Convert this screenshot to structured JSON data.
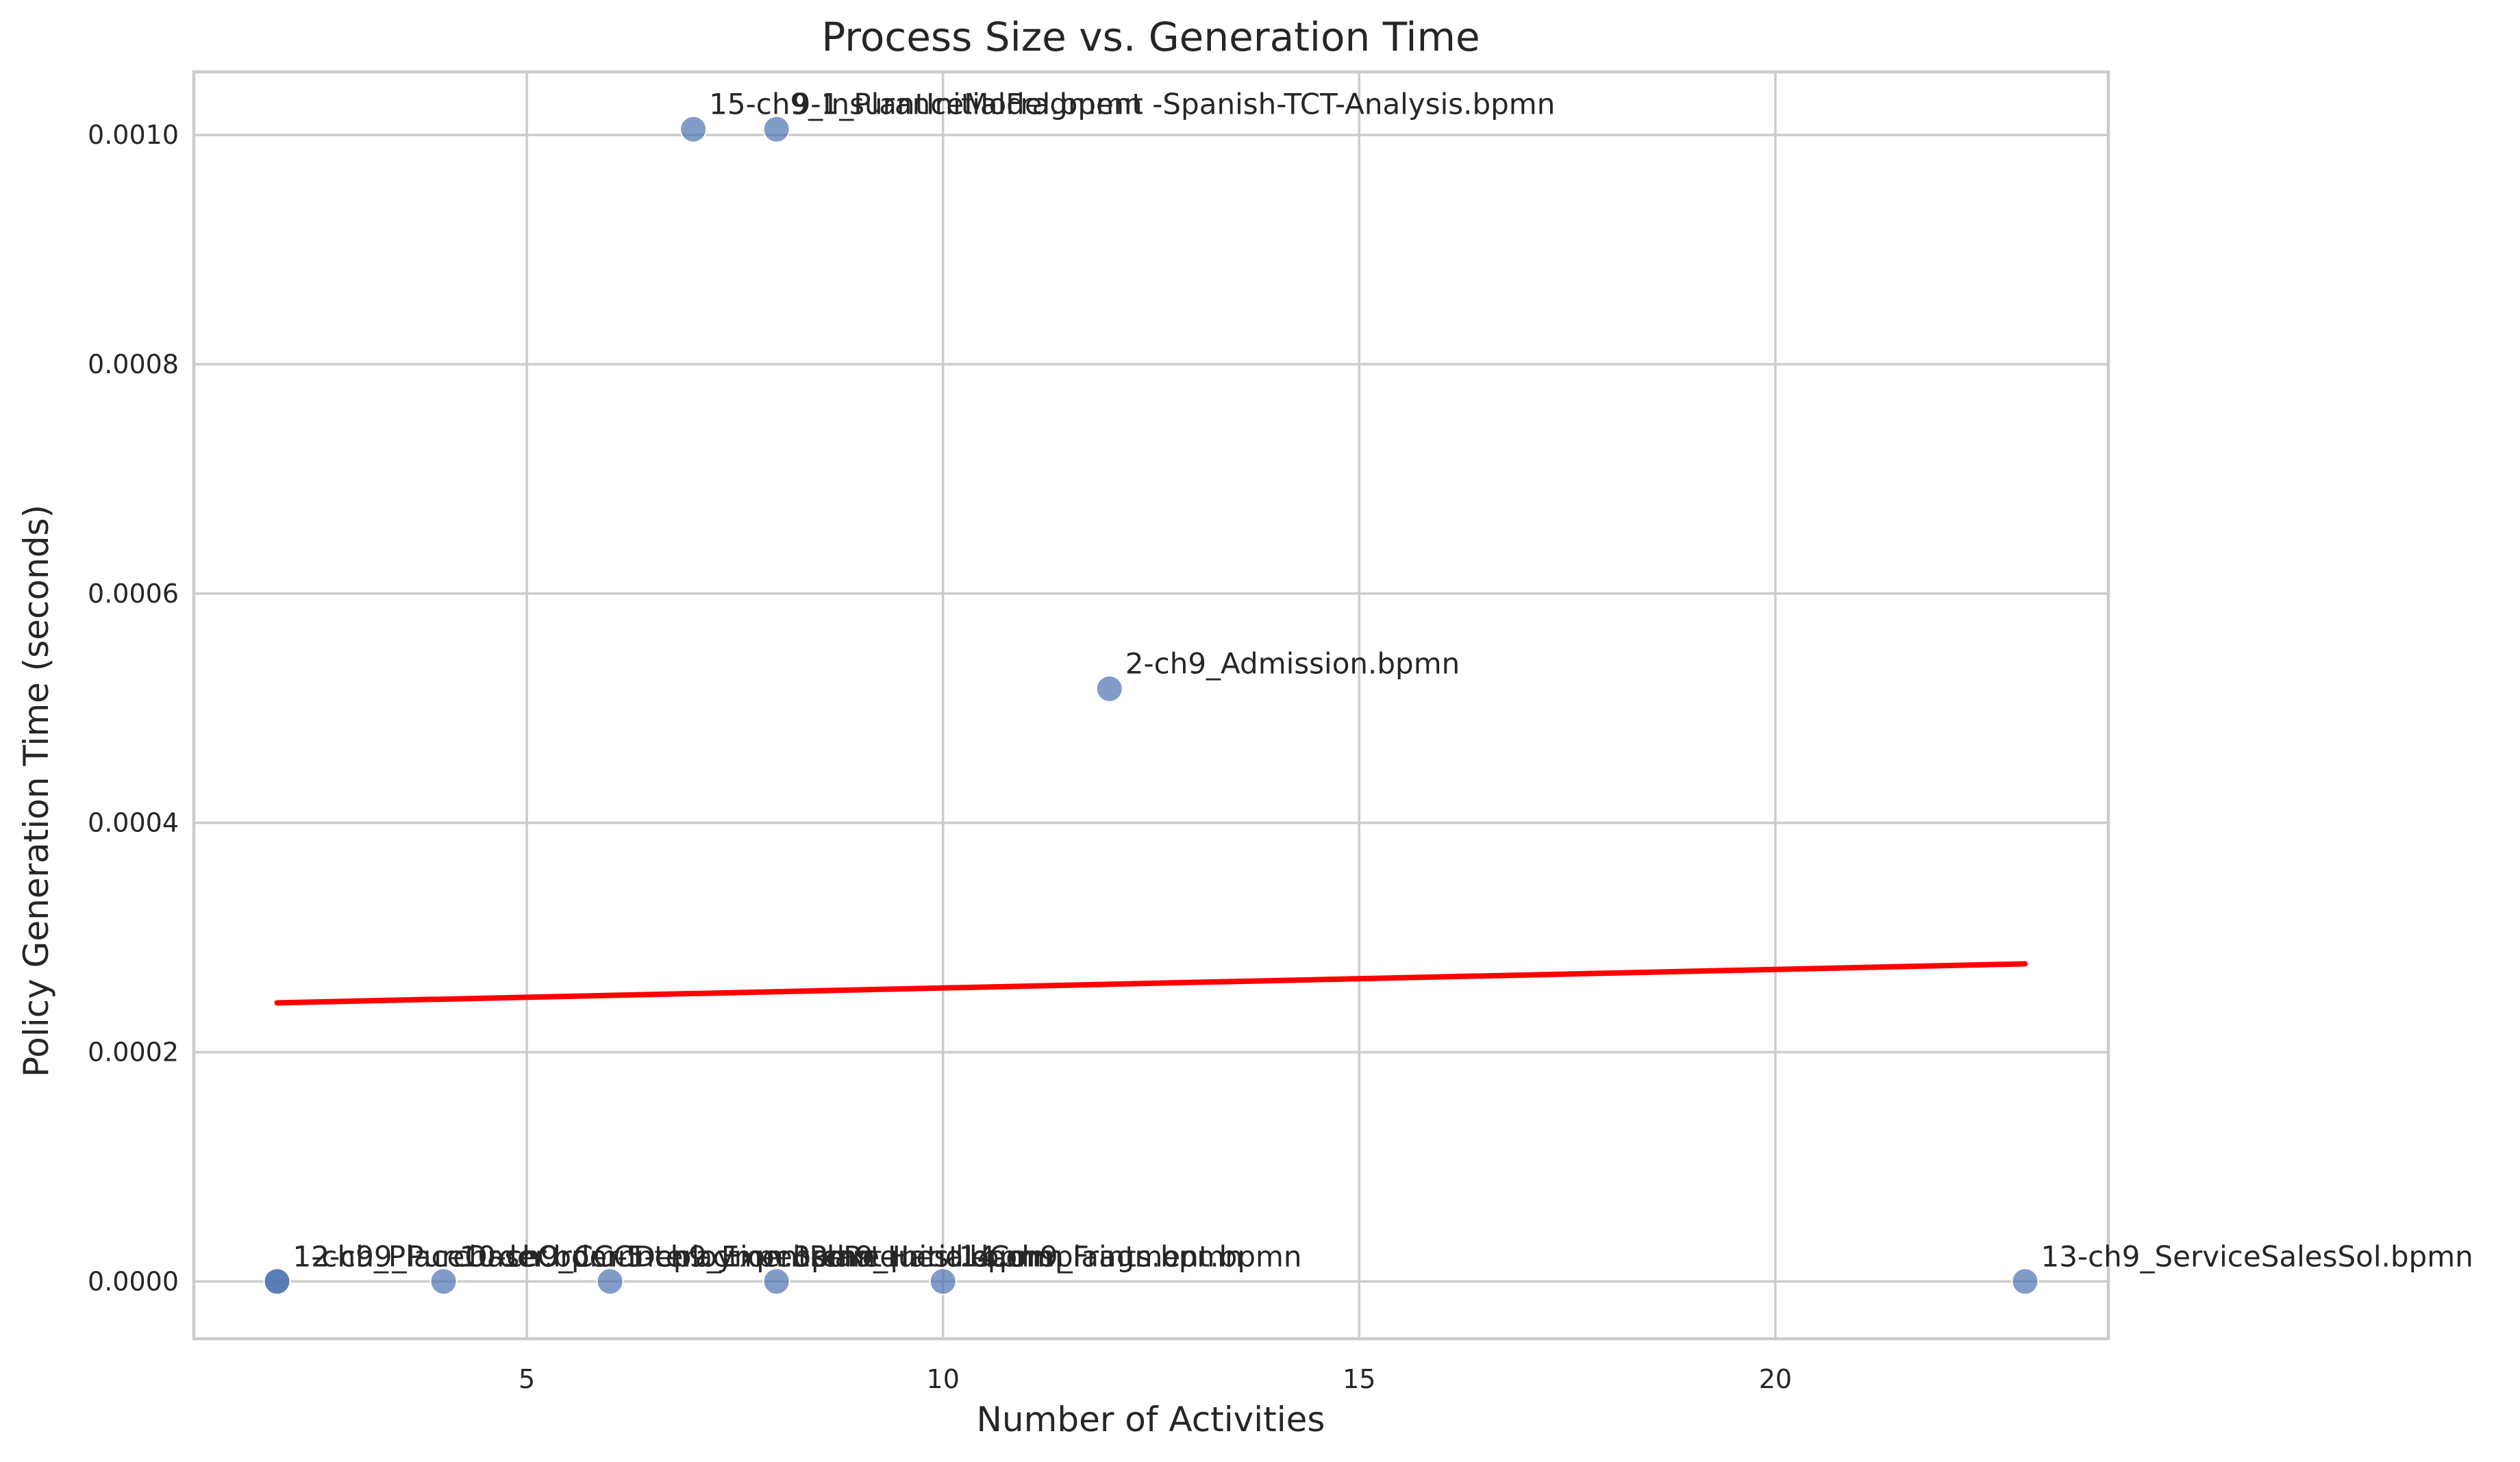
{
  "chart_data": {
    "type": "scatter",
    "title": "Process Size vs. Generation Time",
    "xlabel": "Number of Activities",
    "ylabel": "Policy Generation Time (seconds)",
    "xlim": [
      1,
      24
    ],
    "ylim": [
      -5e-05,
      0.001055
    ],
    "xticks": [
      5,
      10,
      15,
      20
    ],
    "xtick_labels": [
      "5",
      "10",
      "15",
      "20"
    ],
    "yticks": [
      0,
      0.0002,
      0.0004,
      0.0006,
      0.0008,
      0.001
    ],
    "ytick_labels": [
      "0.0000",
      "0.0002",
      "0.0004",
      "0.0006",
      "0.0008",
      "0.0010"
    ],
    "grid": true,
    "legend": "none",
    "point_color": "#4c72b0",
    "trend_color": "#ff0000",
    "points": [
      {
        "x": 2,
        "y": 0.0,
        "label": "1-ch9_PlaceOrder.bpmn"
      },
      {
        "x": 2,
        "y": 0.0,
        "label": "12-ch9_PurchaseOrder-Interaction.bpmn"
      },
      {
        "x": 4,
        "y": 0.0,
        "label": "10-ch9_CCCDeploymentPlant-Initial.bpmn"
      },
      {
        "x": 6,
        "y": 0.0,
        "label": "5-ch9_ExpenseRequest.bpmn"
      },
      {
        "x": 8,
        "y": 0.0,
        "label": "3-ch9_HandleComplaints.bpmn"
      },
      {
        "x": 10,
        "y": 0.0,
        "label": "14-ch9_Fragment.bpmn"
      },
      {
        "x": 7,
        "y": 0.001005,
        "label": "15-ch9_InsuranceModel.bpmn"
      },
      {
        "x": 8,
        "y": 0.001005,
        "label": "9-1_PlantInitialFragment -Spanish-TCT-Analysis.bpmn"
      },
      {
        "x": 12,
        "y": 0.000517,
        "label": "2-ch9_Admission.bpmn"
      },
      {
        "x": 23,
        "y": 0.0,
        "label": "13-ch9_ServiceSalesSol.bpmn"
      }
    ],
    "trend_line": {
      "x": [
        2,
        23
      ],
      "y": [
        0.000243,
        0.000277
      ]
    }
  }
}
